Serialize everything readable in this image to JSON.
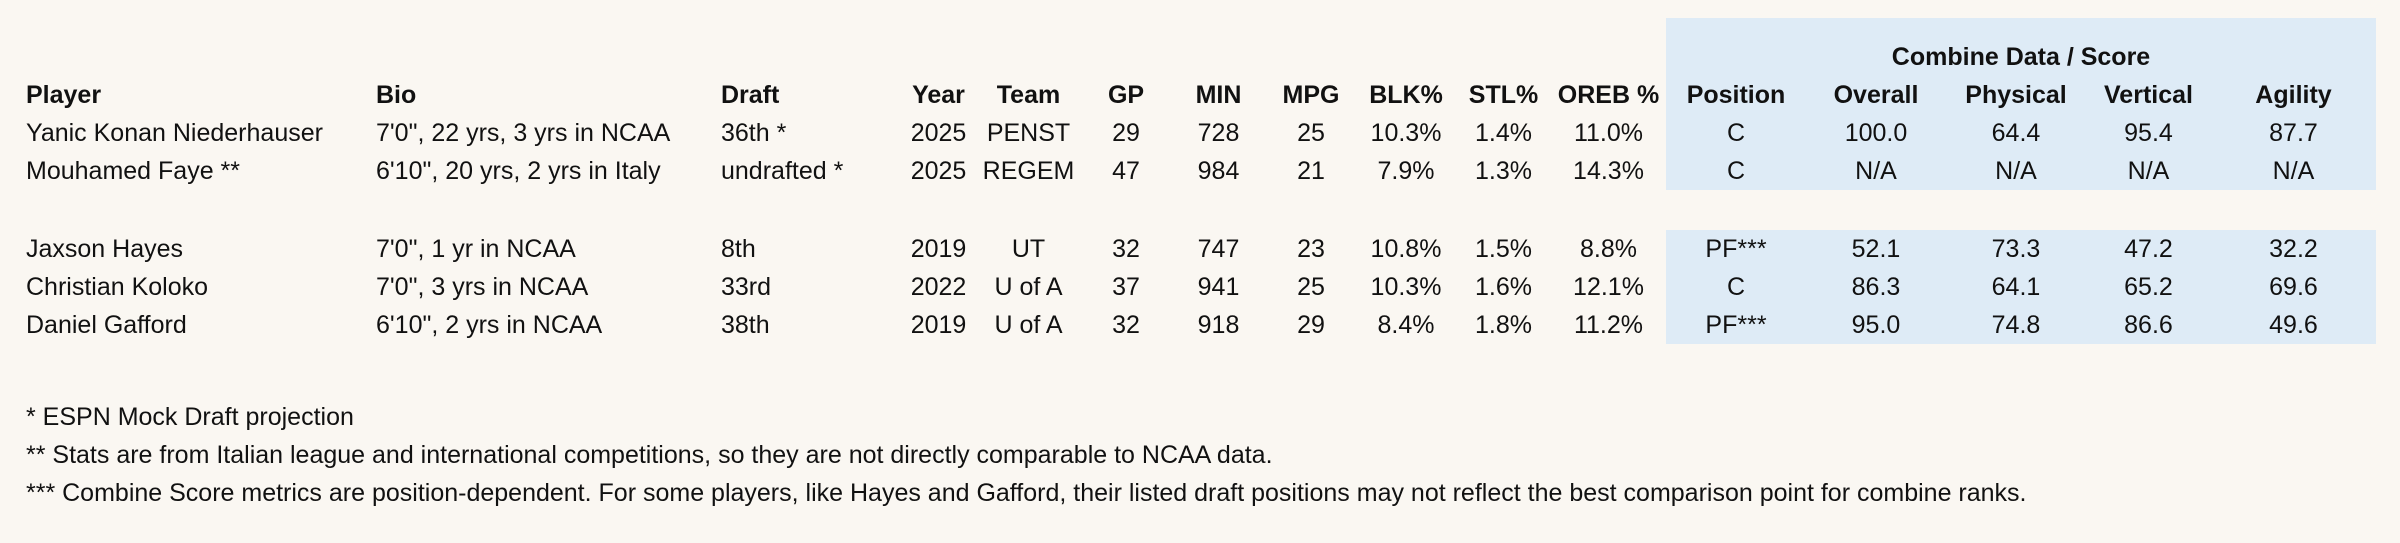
{
  "combine_title": "Combine Data / Score",
  "headers": {
    "player": "Player",
    "bio": "Bio",
    "draft": "Draft",
    "year": "Year",
    "team": "Team",
    "gp": "GP",
    "min": "MIN",
    "mpg": "MPG",
    "blk": "BLK%",
    "stl": "STL%",
    "oreb": "OREB %",
    "position": "Position",
    "overall": "Overall",
    "physical": "Physical",
    "vertical": "Vertical",
    "agility": "Agility"
  },
  "group1": [
    {
      "player": "Yanic Konan Niederhauser",
      "bio": "7'0\",  22 yrs, 3 yrs in NCAA",
      "draft": "36th *",
      "year": "2025",
      "team": "PENST",
      "gp": "29",
      "min": "728",
      "mpg": "25",
      "blk": "10.3%",
      "stl": "1.4%",
      "oreb": "11.0%",
      "position": "C",
      "overall": "100.0",
      "physical": "64.4",
      "vertical": "95.4",
      "agility": "87.7"
    },
    {
      "player": "Mouhamed Faye **",
      "bio": "6'10\", 20 yrs, 2 yrs in Italy",
      "draft": "undrafted *",
      "year": "2025",
      "team": "REGEM",
      "gp": "47",
      "min": "984",
      "mpg": "21",
      "blk": "7.9%",
      "stl": "1.3%",
      "oreb": "14.3%",
      "position": "C",
      "overall": "N/A",
      "physical": "N/A",
      "vertical": "N/A",
      "agility": "N/A"
    }
  ],
  "group2": [
    {
      "player": "Jaxson Hayes",
      "bio": "7'0\",  1 yr in NCAA",
      "draft": "8th",
      "year": "2019",
      "team": "UT",
      "gp": "32",
      "min": "747",
      "mpg": "23",
      "blk": "10.8%",
      "stl": "1.5%",
      "oreb": "8.8%",
      "position": "PF***",
      "overall": "52.1",
      "physical": "73.3",
      "vertical": "47.2",
      "agility": "32.2"
    },
    {
      "player": "Christian Koloko",
      "bio": "7'0\",  3 yrs in NCAA",
      "draft": "33rd",
      "year": "2022",
      "team": "U of A",
      "gp": "37",
      "min": "941",
      "mpg": "25",
      "blk": "10.3%",
      "stl": "1.6%",
      "oreb": "12.1%",
      "position": "C",
      "overall": "86.3",
      "physical": "64.1",
      "vertical": "65.2",
      "agility": "69.6"
    },
    {
      "player": "Daniel Gafford",
      "bio": "6'10\", 2 yrs in NCAA",
      "draft": "38th",
      "year": "2019",
      "team": "U of A",
      "gp": "32",
      "min": "918",
      "mpg": "29",
      "blk": "8.4%",
      "stl": "1.8%",
      "oreb": "11.2%",
      "position": "PF***",
      "overall": "95.0",
      "physical": "74.8",
      "vertical": "86.6",
      "agility": "49.6"
    }
  ],
  "footnotes": [
    "* ESPN Mock Draft projection",
    "** Stats are from Italian league and international competitions, so they are not directly comparable to NCAA data.",
    "***  Combine Score metrics are position-dependent. For some players, like Hayes and Gafford, their listed draft positions may not reflect the best comparison point for combine ranks."
  ],
  "colors": {
    "background": "#faf7f2",
    "combine_shade": "#deebf6"
  }
}
